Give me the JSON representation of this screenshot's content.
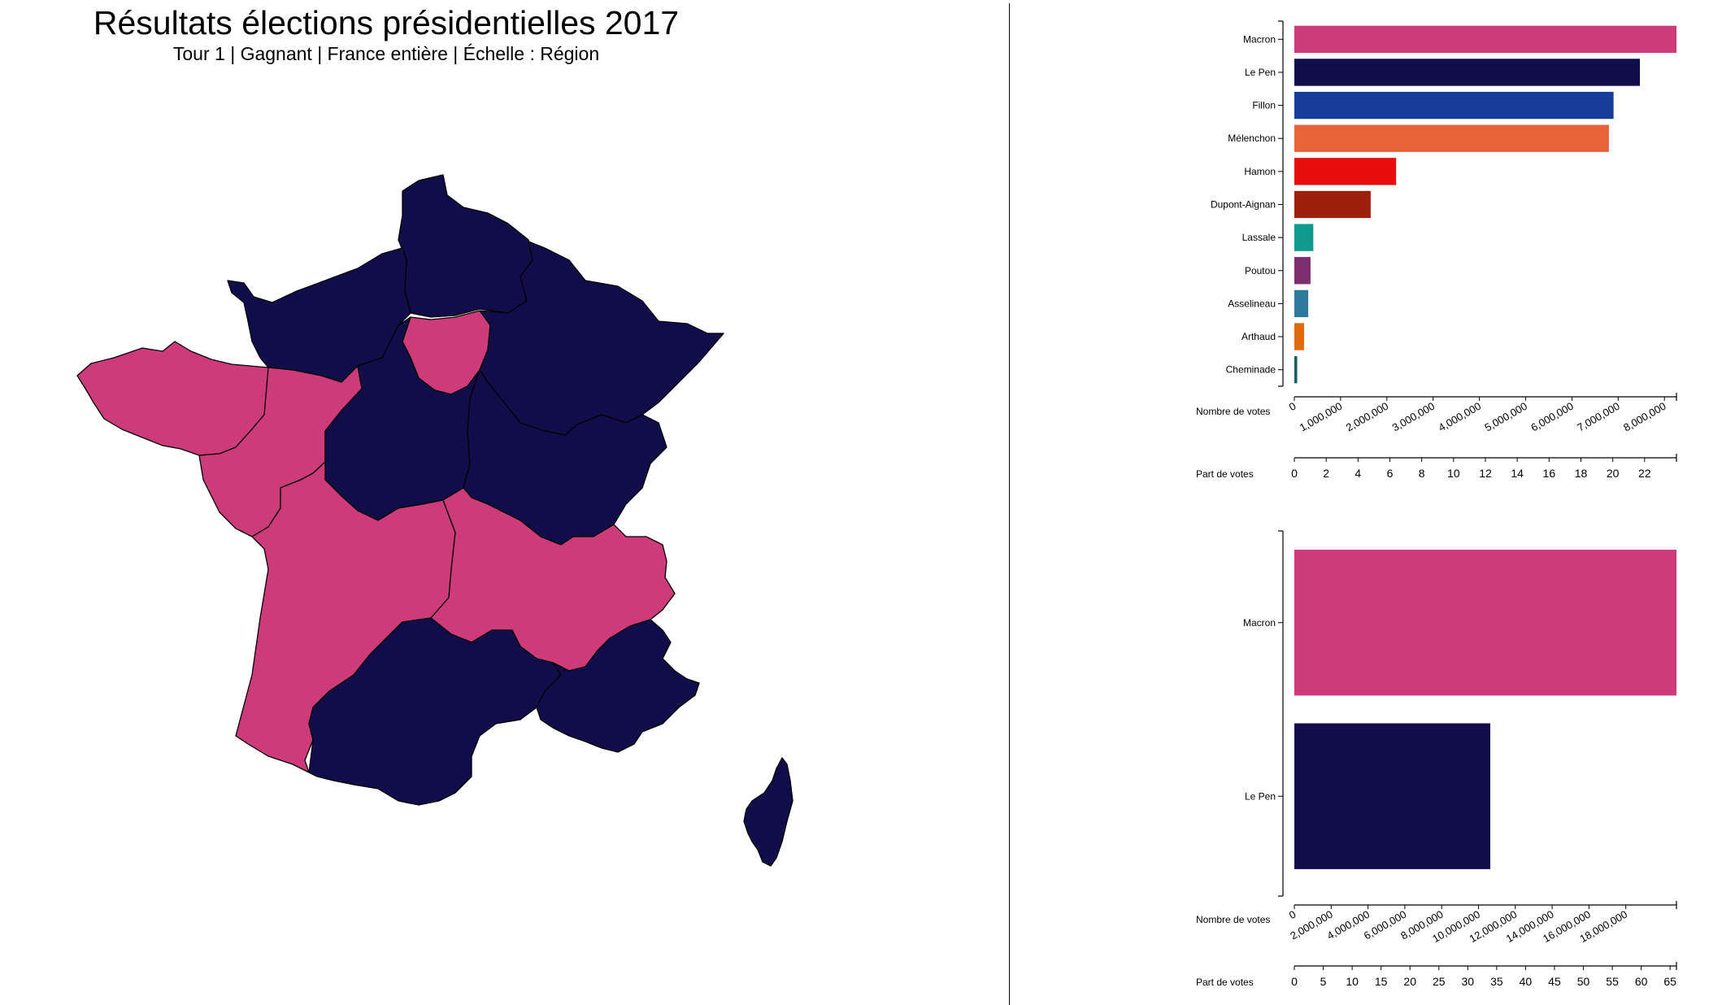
{
  "header": {
    "title": "Résultats élections présidentielles 2017",
    "subtitle": "Tour 1 | Gagnant | France entière | Échelle : Région"
  },
  "colors": {
    "macron": "#cd3b7a",
    "lepen": "#110d4a",
    "region_border": "#000000"
  },
  "map": {
    "regions": [
      {
        "name": "Hauts-de-France",
        "winner": "Le Pen"
      },
      {
        "name": "Normandie",
        "winner": "Le Pen"
      },
      {
        "name": "Île-de-France",
        "winner": "Macron"
      },
      {
        "name": "Grand Est",
        "winner": "Le Pen"
      },
      {
        "name": "Bretagne",
        "winner": "Macron"
      },
      {
        "name": "Pays de la Loire",
        "winner": "Macron"
      },
      {
        "name": "Centre-Val de Loire",
        "winner": "Le Pen"
      },
      {
        "name": "Bourgogne-Franche-Comté",
        "winner": "Le Pen"
      },
      {
        "name": "Nouvelle-Aquitaine",
        "winner": "Macron"
      },
      {
        "name": "Auvergne-Rhône-Alpes",
        "winner": "Macron"
      },
      {
        "name": "Occitanie",
        "winner": "Le Pen"
      },
      {
        "name": "Provence-Alpes-Côte d'Azur",
        "winner": "Le Pen"
      },
      {
        "name": "Corse",
        "winner": "Le Pen"
      }
    ]
  },
  "chart_data": [
    {
      "type": "bar",
      "orientation": "horizontal",
      "categories": [
        "Macron",
        "Le Pen",
        "Fillon",
        "Mélenchon",
        "Hamon",
        "Dupont-Aignan",
        "Lassale",
        "Poutou",
        "Asselineau",
        "Arthaud",
        "Cheminade"
      ],
      "values": [
        8260000,
        7470000,
        6900000,
        6800000,
        2200000,
        1650000,
        410000,
        350000,
        300000,
        210000,
        62000
      ],
      "colors": [
        "#cd3b7a",
        "#110d4a",
        "#173d9b",
        "#e8623a",
        "#e50d0d",
        "#9e1f0b",
        "#0e9a8c",
        "#7e2d6e",
        "#2e7a9b",
        "#df6b0e",
        "#195e5e"
      ],
      "axes": [
        {
          "label": "Nombre de votes",
          "ticks": [
            "0",
            "1,000,000",
            "2,000,000",
            "3,000,000",
            "4,000,000",
            "5,000,000",
            "6,000,000",
            "7,000,000",
            "8,000,000"
          ],
          "tick_values": [
            0,
            1000000,
            2000000,
            3000000,
            4000000,
            5000000,
            6000000,
            7000000,
            8000000
          ],
          "range": [
            0,
            8260000
          ]
        },
        {
          "label": "Part de votes",
          "ticks": [
            "0",
            "2",
            "4",
            "6",
            "8",
            "10",
            "12",
            "14",
            "16",
            "18",
            "20",
            "22"
          ],
          "tick_values": [
            0,
            2,
            4,
            6,
            8,
            10,
            12,
            14,
            16,
            18,
            20,
            22
          ],
          "range": [
            0,
            24.0
          ]
        }
      ]
    },
    {
      "type": "bar",
      "orientation": "horizontal",
      "categories": [
        "Macron",
        "Le Pen"
      ],
      "values": [
        20750000,
        10640000
      ],
      "colors": [
        "#cd3b7a",
        "#110d4a"
      ],
      "axes": [
        {
          "label": "Nombre de votes",
          "ticks": [
            "0",
            "2,000,000",
            "4,000,000",
            "6,000,000",
            "8,000,000",
            "10,000,000",
            "12,000,000",
            "14,000,000",
            "16,000,000",
            "18,000,000"
          ],
          "tick_values": [
            0,
            2000000,
            4000000,
            6000000,
            8000000,
            10000000,
            12000000,
            14000000,
            16000000,
            18000000
          ],
          "range": [
            0,
            20750000
          ]
        },
        {
          "label": "Part de votes",
          "ticks": [
            "0",
            "5",
            "10",
            "15",
            "20",
            "25",
            "30",
            "35",
            "40",
            "45",
            "50",
            "55",
            "60",
            "65"
          ],
          "tick_values": [
            0,
            5,
            10,
            15,
            20,
            25,
            30,
            35,
            40,
            45,
            50,
            55,
            60,
            65
          ],
          "range": [
            0,
            66.1
          ]
        }
      ]
    }
  ]
}
